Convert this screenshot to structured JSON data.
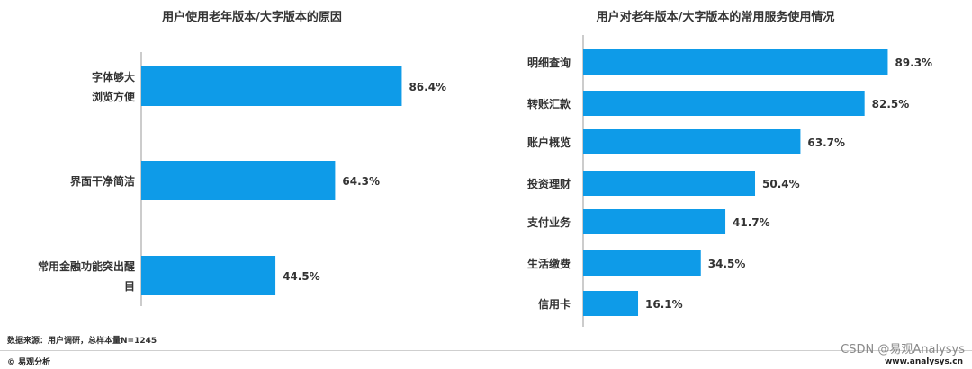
{
  "chart_data": [
    {
      "type": "bar",
      "orientation": "horizontal",
      "title": "用户使用老年版本/大字版本的原因",
      "categories": [
        [
          "字体够大",
          "浏览方便"
        ],
        [
          "界面干净简洁"
        ],
        [
          "常用金融功能突出醒",
          "目"
        ]
      ],
      "values": [
        86.4,
        64.3,
        44.5
      ],
      "value_labels": [
        "86.4%",
        "64.3%",
        "44.5%"
      ],
      "xlim": [
        0,
        100
      ],
      "grid": false,
      "bar_color": "#0e9be8"
    },
    {
      "type": "bar",
      "orientation": "horizontal",
      "title": "用户对老年版本/大字版本的常用服务使用情况",
      "categories": [
        [
          "明细查询"
        ],
        [
          "转账汇款"
        ],
        [
          "账户概览"
        ],
        [
          "投资理财"
        ],
        [
          "支付业务"
        ],
        [
          "生活缴费"
        ],
        [
          "信用卡"
        ]
      ],
      "values": [
        89.3,
        82.5,
        63.7,
        50.4,
        41.7,
        34.5,
        16.1
      ],
      "value_labels": [
        "89.3%",
        "82.5%",
        "63.7%",
        "50.4%",
        "41.7%",
        "34.5%",
        "16.1%"
      ],
      "xlim": [
        0,
        100
      ],
      "grid": false,
      "bar_color": "#0e9be8"
    }
  ],
  "footer": {
    "source": "数据来源：用户调研，总样本量N=1245",
    "copyright": "© 易观分析",
    "url": "www.analysys.cn",
    "credit": "CSDN @易观Analysys"
  },
  "colors": {
    "bar": "#0e9be8",
    "axis": "#9a9a9a"
  }
}
